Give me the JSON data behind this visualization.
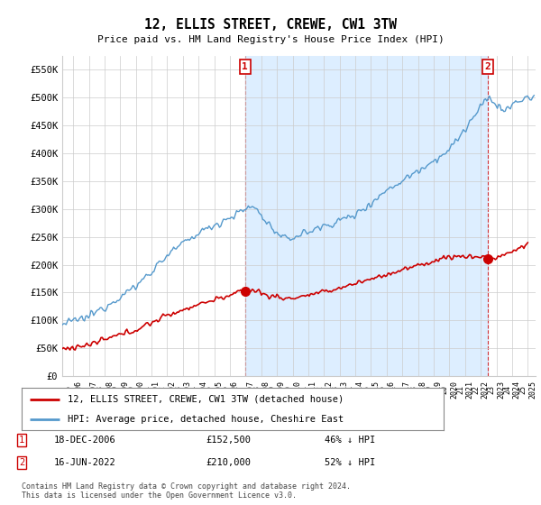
{
  "title": "12, ELLIS STREET, CREWE, CW1 3TW",
  "subtitle": "Price paid vs. HM Land Registry's House Price Index (HPI)",
  "ylabel_ticks": [
    "£0",
    "£50K",
    "£100K",
    "£150K",
    "£200K",
    "£250K",
    "£300K",
    "£350K",
    "£400K",
    "£450K",
    "£500K",
    "£550K"
  ],
  "ylim": [
    0,
    575000
  ],
  "xlim_start": 1995.3,
  "xlim_end": 2025.5,
  "legend_line1": "12, ELLIS STREET, CREWE, CW1 3TW (detached house)",
  "legend_line2": "HPI: Average price, detached house, Cheshire East",
  "sale1_label": "1",
  "sale1_date": "18-DEC-2006",
  "sale1_price": "£152,500",
  "sale1_hpi": "46% ↓ HPI",
  "sale1_x": 2006.96,
  "sale1_y": 152500,
  "sale2_label": "2",
  "sale2_date": "16-JUN-2022",
  "sale2_price": "£210,000",
  "sale2_hpi": "52% ↓ HPI",
  "sale2_x": 2022.46,
  "sale2_y": 210000,
  "footer": "Contains HM Land Registry data © Crown copyright and database right 2024.\nThis data is licensed under the Open Government Licence v3.0.",
  "line_color_property": "#cc0000",
  "line_color_hpi": "#5599cc",
  "fill_color": "#ddeeff",
  "marker_box_color": "#cc0000",
  "background_color": "#ffffff",
  "grid_color": "#cccccc"
}
